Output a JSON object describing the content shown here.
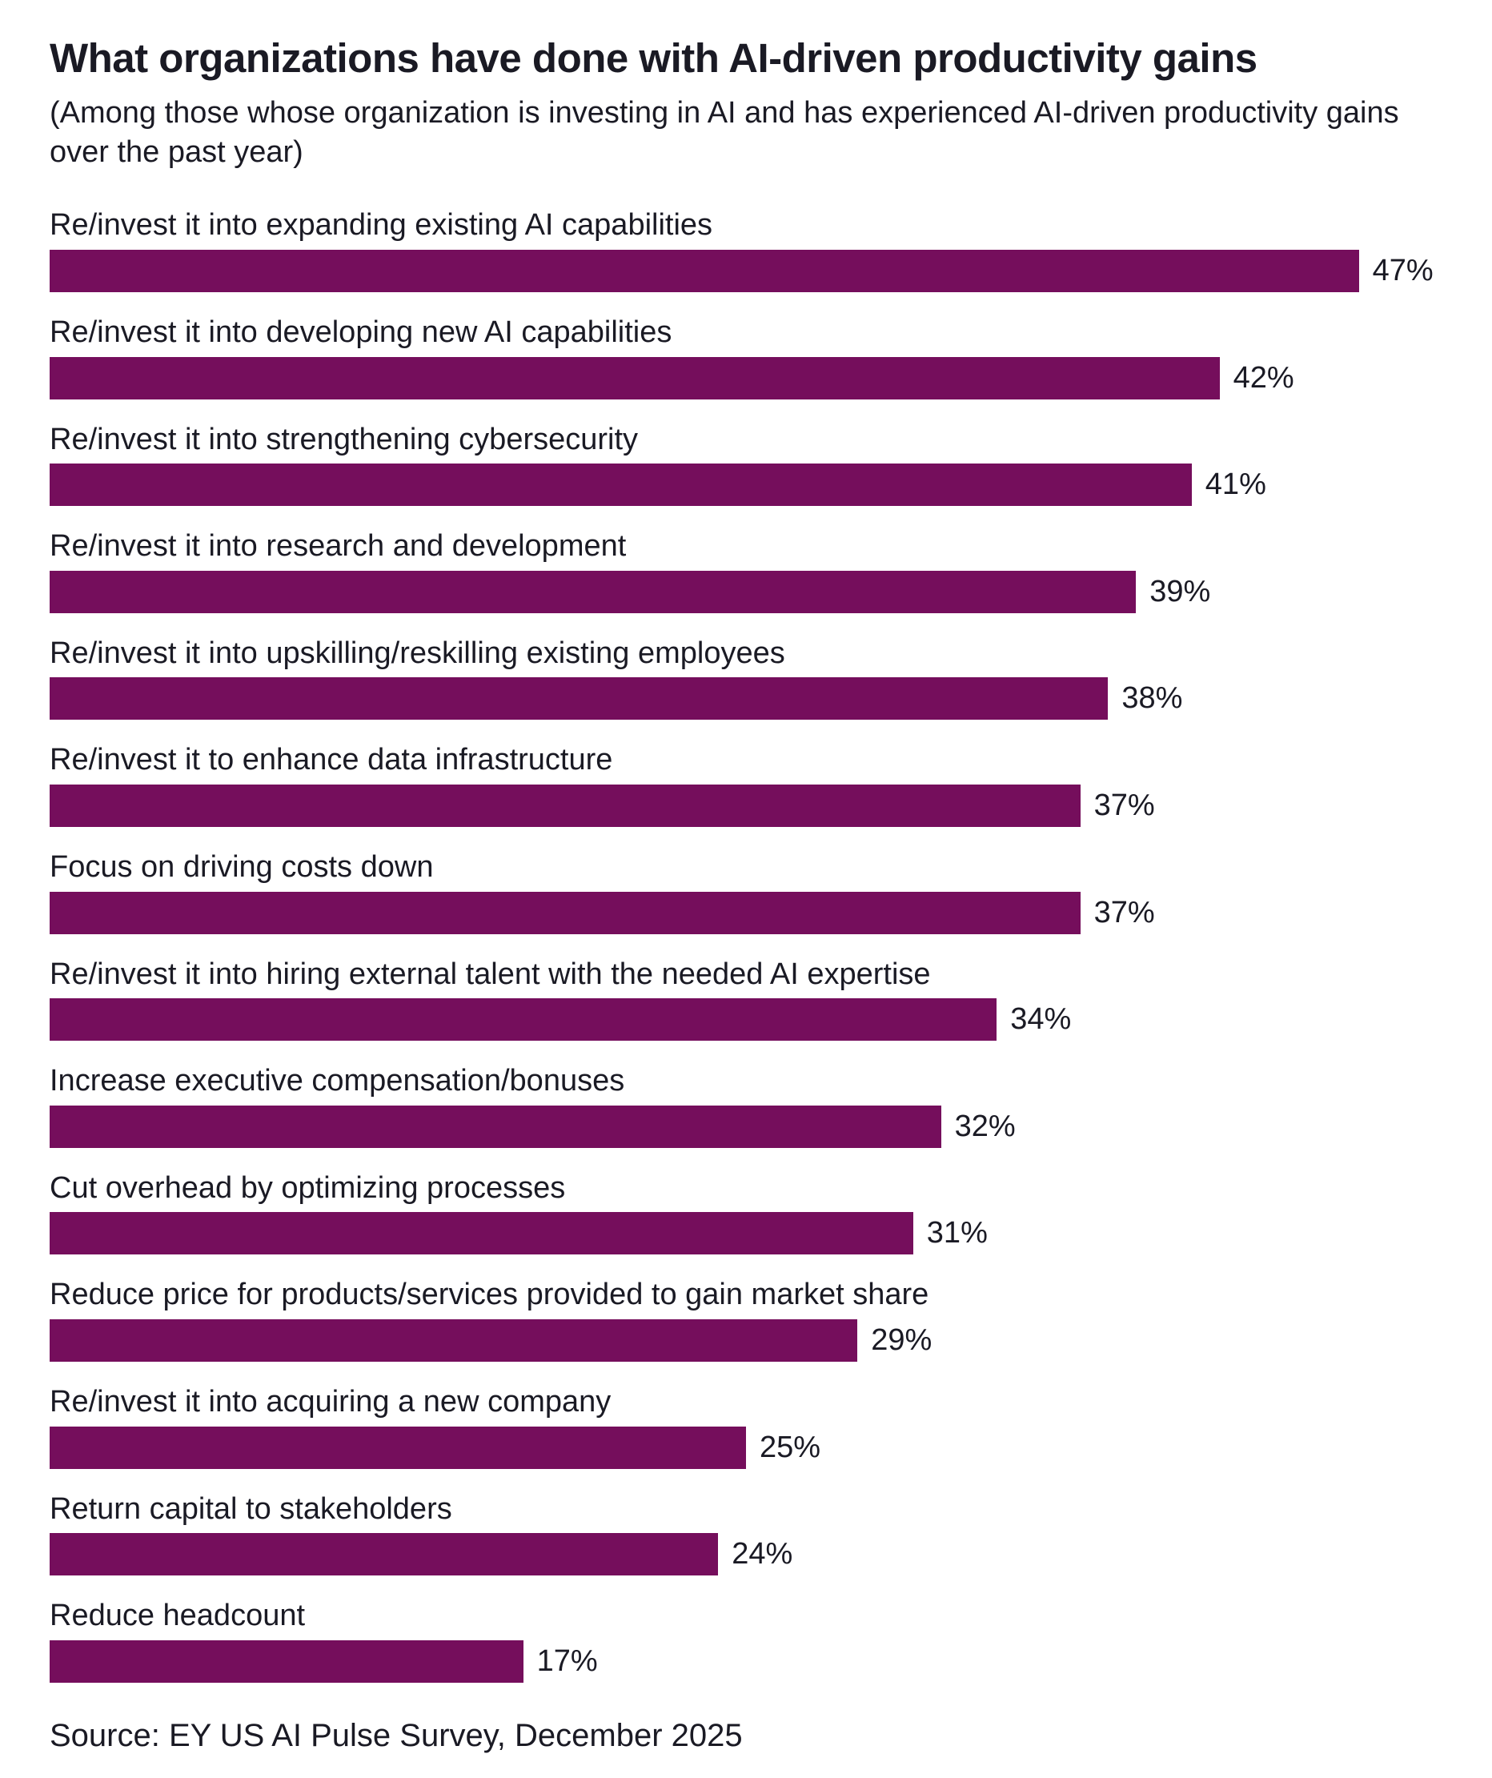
{
  "chart_data": {
    "type": "bar",
    "orientation": "horizontal",
    "title": "What organizations have done with AI-driven productivity gains",
    "subtitle": "(Among those whose organization is investing in AI and has experienced AI-driven productivity gains over the past year)",
    "source": "Source: EY US AI Pulse Survey, December 2025",
    "bar_color": "#750E5C",
    "value_suffix": "%",
    "xlim": [
      0,
      50
    ],
    "grid": false,
    "legend": "none",
    "value_labels": "outside-end",
    "categories": [
      "Re/invest it into expanding existing AI capabilities",
      "Re/invest it into developing new AI capabilities",
      "Re/invest it into strengthening cybersecurity",
      "Re/invest it into research and development",
      "Re/invest it into upskilling/reskilling existing employees",
      "Re/invest it to enhance data infrastructure",
      "Focus on driving costs down",
      "Re/invest it into hiring external talent with the needed AI expertise",
      "Increase executive compensation/bonuses",
      "Cut overhead by optimizing processes",
      "Reduce price for products/services provided to gain market share",
      "Re/invest it into acquiring a new company",
      "Return capital to stakeholders",
      "Reduce headcount"
    ],
    "values": [
      47,
      42,
      41,
      39,
      38,
      37,
      37,
      34,
      32,
      31,
      29,
      25,
      24,
      17
    ]
  }
}
